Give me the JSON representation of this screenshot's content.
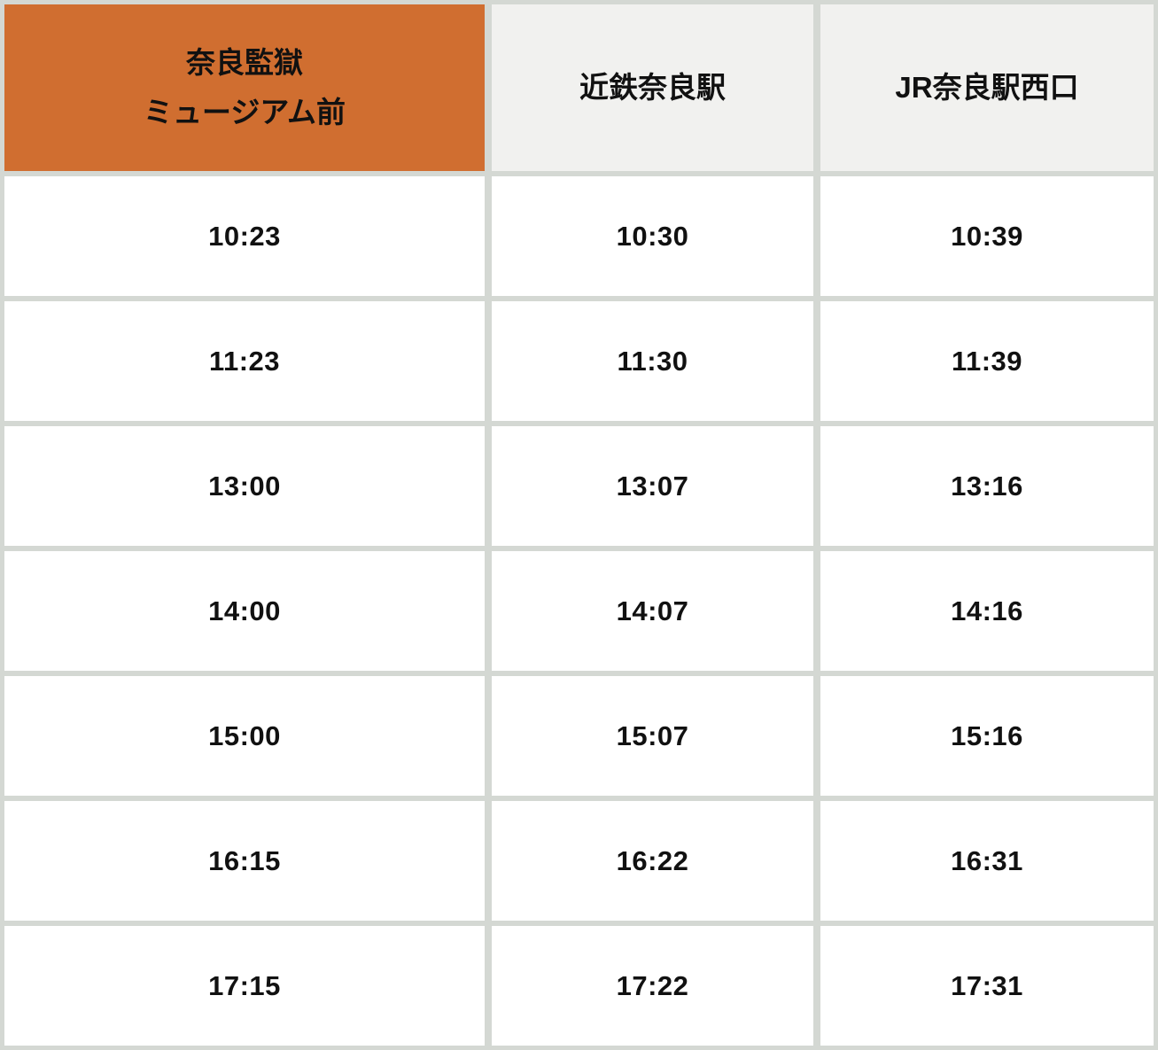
{
  "colors": {
    "accent_orange": "#D06E30",
    "header_gray": "#F1F1EF",
    "grid_line": "#D4D8D3",
    "cell_background": "#FFFFFF",
    "text": "#111111"
  },
  "timetable": {
    "headers": [
      {
        "label": "奈良監獄\nミュージアム前",
        "highlighted": true
      },
      {
        "label": "近鉄奈良駅",
        "highlighted": false
      },
      {
        "label": "JR奈良駅西口",
        "highlighted": false
      }
    ],
    "rows": [
      [
        "10:23",
        "10:30",
        "10:39"
      ],
      [
        "11:23",
        "11:30",
        "11:39"
      ],
      [
        "13:00",
        "13:07",
        "13:16"
      ],
      [
        "14:00",
        "14:07",
        "14:16"
      ],
      [
        "15:00",
        "15:07",
        "15:16"
      ],
      [
        "16:15",
        "16:22",
        "16:31"
      ],
      [
        "17:15",
        "17:22",
        "17:31"
      ]
    ]
  }
}
